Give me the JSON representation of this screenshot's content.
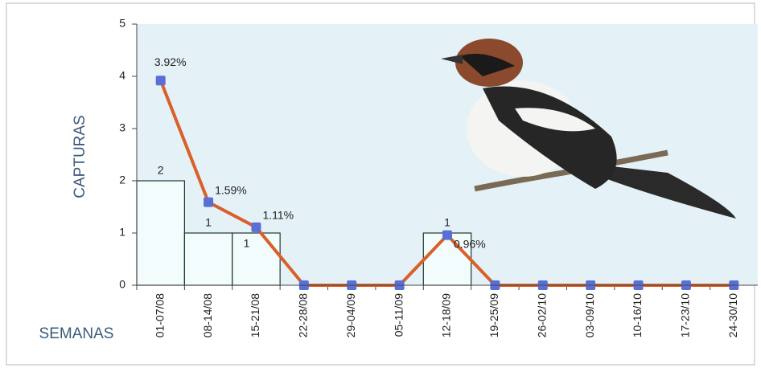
{
  "chart_data": {
    "type": "bar-line",
    "y_label": "CAPTURAS",
    "x_label": "SEMANAS",
    "categories": [
      "01-07/08",
      "08-14/08",
      "15-21/08",
      "22-28/08",
      "29-04/09",
      "05-11/09",
      "12-18/09",
      "19-25/09",
      "26-02/10",
      "03-09/10",
      "10-16/10",
      "17-23/10",
      "24-30/10"
    ],
    "series": [
      {
        "kind": "bar",
        "color": "#f2fcfc",
        "values": [
          2,
          1,
          1,
          0,
          0,
          0,
          1,
          0,
          0,
          0,
          0,
          0,
          0
        ]
      },
      {
        "kind": "line",
        "color": "#d9602a",
        "marker_color": "#5a6fd6",
        "values": [
          3.92,
          1.59,
          1.11,
          0,
          0,
          0,
          0.96,
          0,
          0,
          0,
          0,
          0,
          0
        ],
        "value_labels": [
          "3.92%",
          "1.59%",
          "1.11%",
          null,
          null,
          null,
          "0.96%",
          null,
          null,
          null,
          null,
          null,
          null
        ]
      }
    ],
    "ylim": [
      0,
      5
    ],
    "yticks": [
      0,
      1,
      2,
      3,
      4,
      5
    ]
  }
}
